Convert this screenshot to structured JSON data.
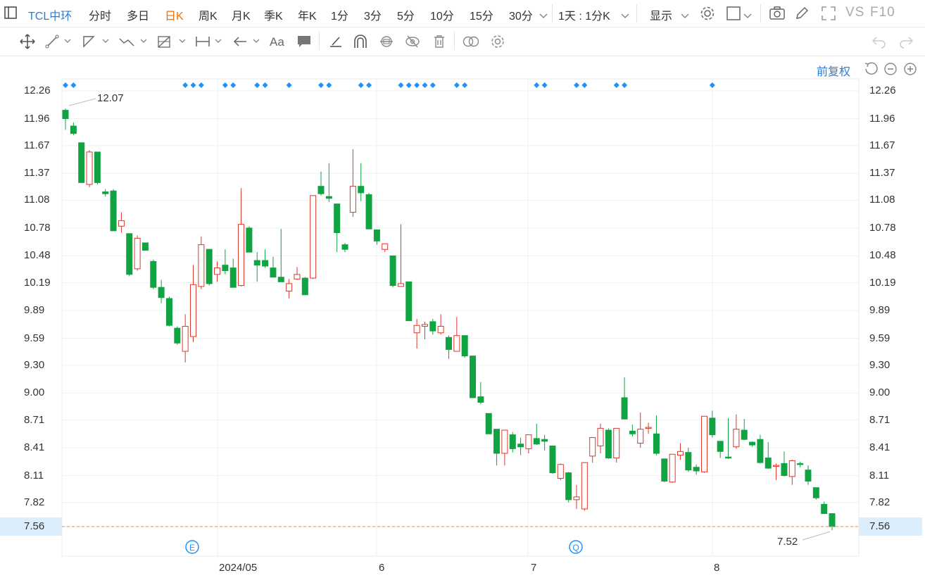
{
  "toolbar": {
    "stock_name": "TCL中环",
    "periods": [
      "分时",
      "多日",
      "日K",
      "周K",
      "月K",
      "季K",
      "年K",
      "1分",
      "3分",
      "5分",
      "10分",
      "15分",
      "30分"
    ],
    "active_period": "日K",
    "interval_label": "1天 : 1分K",
    "display_label": "显示",
    "vs_label": "VS",
    "f10_label": "F10"
  },
  "adjust_label": "前复权",
  "colors": {
    "up": "#e0362a",
    "down": "#10a342",
    "accent": "#2b7cd9",
    "active": "#ff6a00",
    "last_price": "#f08a3c",
    "marker": "#1e90ff"
  },
  "chart_data": {
    "type": "candlestick",
    "y_ticks": [
      "12.26",
      "11.96",
      "11.67",
      "11.37",
      "11.08",
      "10.78",
      "10.48",
      "10.19",
      "9.89",
      "9.59",
      "9.30",
      "9.00",
      "8.71",
      "8.41",
      "8.11",
      "7.82",
      "7.56"
    ],
    "x_labels": [
      "2024/05",
      "6",
      "7",
      "8"
    ],
    "max_label": "12.07",
    "min_label": "7.52",
    "last_price": "7.56",
    "event_markers": [
      "E",
      "Q"
    ],
    "candles": [
      [
        12.05,
        11.96,
        12.07,
        11.84
      ],
      [
        11.88,
        11.8,
        11.92,
        11.78
      ],
      [
        11.7,
        11.27,
        11.7,
        11.27
      ],
      [
        11.25,
        11.6,
        11.62,
        11.22
      ],
      [
        11.6,
        11.27,
        11.6,
        11.25
      ],
      [
        11.17,
        11.15,
        11.2,
        11.12
      ],
      [
        11.18,
        10.75,
        11.2,
        10.75
      ],
      [
        10.8,
        10.86,
        10.95,
        10.73
      ],
      [
        10.72,
        10.28,
        10.72,
        10.26
      ],
      [
        10.34,
        10.67,
        10.7,
        10.32
      ],
      [
        10.62,
        10.54,
        10.62,
        10.54
      ],
      [
        10.42,
        10.14,
        10.44,
        10.12
      ],
      [
        10.14,
        10.03,
        10.22,
        9.97
      ],
      [
        10.02,
        9.73,
        10.04,
        9.72
      ],
      [
        9.7,
        9.54,
        9.72,
        9.52
      ],
      [
        9.45,
        9.72,
        9.85,
        9.33
      ],
      [
        9.61,
        10.17,
        10.38,
        9.55
      ],
      [
        10.15,
        10.6,
        10.69,
        10.12
      ],
      [
        10.55,
        10.18,
        10.55,
        10.16
      ],
      [
        10.28,
        10.35,
        10.42,
        10.2
      ],
      [
        10.38,
        10.32,
        10.55,
        10.28
      ],
      [
        10.35,
        10.14,
        10.45,
        10.14
      ],
      [
        10.16,
        10.82,
        11.21,
        10.15
      ],
      [
        10.78,
        10.52,
        10.8,
        10.52
      ],
      [
        10.43,
        10.38,
        10.52,
        10.2
      ],
      [
        10.43,
        10.37,
        10.55,
        10.35
      ],
      [
        10.35,
        10.25,
        10.47,
        10.25
      ],
      [
        10.25,
        10.2,
        10.77,
        10.2
      ],
      [
        10.1,
        10.18,
        10.23,
        10.02
      ],
      [
        10.23,
        10.28,
        10.36,
        10.22
      ],
      [
        10.24,
        10.06,
        10.25,
        10.06
      ],
      [
        10.24,
        11.13,
        11.13,
        10.23
      ],
      [
        11.23,
        11.15,
        11.39,
        11.13
      ],
      [
        11.12,
        11.1,
        11.48,
        11.06
      ],
      [
        11.04,
        10.73,
        11.04,
        10.52
      ],
      [
        10.6,
        10.55,
        10.62,
        10.52
      ],
      [
        10.95,
        11.23,
        11.63,
        10.9
      ],
      [
        11.23,
        11.16,
        11.48,
        11.07
      ],
      [
        11.14,
        10.77,
        11.16,
        10.77
      ],
      [
        10.76,
        10.64,
        10.76,
        10.6
      ],
      [
        10.55,
        10.61,
        10.61,
        10.52
      ],
      [
        10.48,
        10.16,
        10.48,
        10.14
      ],
      [
        10.15,
        10.18,
        10.82,
        10.15
      ],
      [
        10.2,
        9.78,
        10.2,
        9.78
      ],
      [
        9.65,
        9.73,
        9.8,
        9.48
      ],
      [
        9.72,
        9.74,
        9.77,
        9.58
      ],
      [
        9.77,
        9.67,
        9.8,
        9.63
      ],
      [
        9.65,
        9.72,
        9.85,
        9.63
      ],
      [
        9.6,
        9.47,
        9.62,
        9.37
      ],
      [
        9.45,
        9.62,
        9.82,
        9.45
      ],
      [
        9.62,
        9.4,
        9.62,
        9.38
      ],
      [
        9.4,
        8.95,
        9.4,
        8.95
      ],
      [
        8.96,
        8.9,
        9.12,
        8.88
      ],
      [
        8.78,
        8.56,
        8.78,
        8.56
      ],
      [
        8.61,
        8.35,
        8.61,
        8.22
      ],
      [
        8.35,
        8.6,
        8.6,
        8.22
      ],
      [
        8.55,
        8.4,
        8.58,
        8.36
      ],
      [
        8.45,
        8.42,
        8.52,
        8.33
      ],
      [
        8.4,
        8.55,
        8.55,
        8.35
      ],
      [
        8.51,
        8.45,
        8.67,
        8.44
      ],
      [
        8.5,
        8.48,
        8.55,
        8.38
      ],
      [
        8.43,
        8.14,
        8.43,
        8.13
      ],
      [
        8.08,
        8.23,
        8.24,
        8.06
      ],
      [
        8.14,
        7.85,
        8.15,
        7.82
      ],
      [
        7.85,
        7.88,
        8.01,
        7.75
      ],
      [
        7.75,
        8.25,
        8.25,
        7.73
      ],
      [
        8.32,
        8.52,
        8.52,
        8.25
      ],
      [
        8.43,
        8.62,
        8.67,
        8.35
      ],
      [
        8.6,
        8.3,
        8.62,
        8.29
      ],
      [
        8.3,
        8.62,
        8.62,
        8.25
      ],
      [
        8.95,
        8.72,
        9.17,
        8.72
      ],
      [
        8.59,
        8.56,
        8.66,
        8.53
      ],
      [
        8.46,
        8.61,
        8.79,
        8.41
      ],
      [
        8.63,
        8.63,
        8.68,
        8.56
      ],
      [
        8.56,
        8.35,
        8.76,
        8.33
      ],
      [
        8.29,
        8.05,
        8.29,
        8.04
      ],
      [
        8.04,
        8.34,
        8.34,
        8.03
      ],
      [
        8.33,
        8.37,
        8.46,
        8.28
      ],
      [
        8.36,
        8.17,
        8.41,
        8.15
      ],
      [
        8.2,
        8.16,
        8.23,
        8.12
      ],
      [
        8.15,
        8.75,
        8.75,
        8.14
      ],
      [
        8.73,
        8.55,
        8.81,
        8.52
      ],
      [
        8.48,
        8.37,
        8.48,
        8.3
      ],
      [
        8.31,
        8.3,
        8.73,
        8.29
      ],
      [
        8.42,
        8.61,
        8.77,
        8.4
      ],
      [
        8.6,
        8.5,
        8.72,
        8.49
      ],
      [
        8.47,
        8.44,
        8.48,
        8.42
      ],
      [
        8.5,
        8.25,
        8.55,
        8.24
      ],
      [
        8.3,
        8.19,
        8.47,
        8.18
      ],
      [
        8.22,
        8.22,
        8.24,
        8.06
      ],
      [
        8.24,
        8.11,
        8.37,
        8.1
      ],
      [
        8.1,
        8.27,
        8.28,
        8.01
      ],
      [
        8.24,
        8.23,
        8.26,
        8.2
      ],
      [
        8.17,
        8.05,
        8.22,
        8.01
      ],
      [
        7.98,
        7.87,
        7.98,
        7.85
      ],
      [
        7.8,
        7.7,
        7.83,
        7.7
      ],
      [
        7.7,
        7.56,
        7.7,
        7.52
      ]
    ]
  }
}
